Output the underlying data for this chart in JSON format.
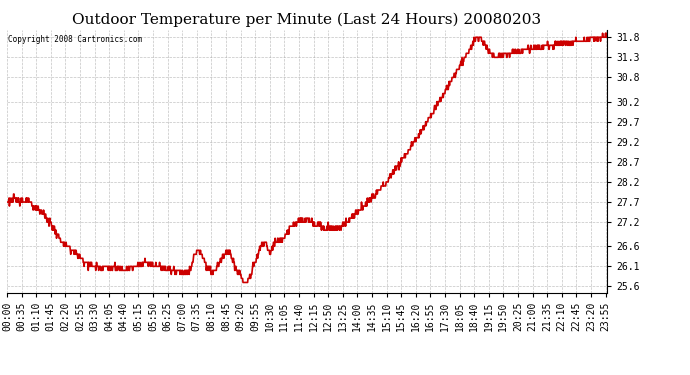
{
  "title": "Outdoor Temperature per Minute (Last 24 Hours) 20080203",
  "copyright_text": "Copyright 2008 Cartronics.com",
  "line_color": "#cc0000",
  "bg_color": "#ffffff",
  "plot_bg_color": "#ffffff",
  "grid_color": "#aaaaaa",
  "yticks": [
    25.6,
    26.1,
    26.6,
    27.2,
    27.7,
    28.2,
    28.7,
    29.2,
    29.7,
    30.2,
    30.8,
    31.3,
    31.8
  ],
  "ylim": [
    25.45,
    31.98
  ],
  "xtick_labels": [
    "00:00",
    "00:35",
    "01:10",
    "01:45",
    "02:20",
    "02:55",
    "03:30",
    "04:05",
    "04:40",
    "05:15",
    "05:50",
    "06:25",
    "07:00",
    "07:35",
    "08:10",
    "08:45",
    "09:20",
    "09:55",
    "10:30",
    "11:05",
    "11:40",
    "12:15",
    "12:50",
    "13:25",
    "14:00",
    "14:35",
    "15:10",
    "15:45",
    "16:20",
    "16:55",
    "17:30",
    "18:05",
    "18:40",
    "19:15",
    "19:50",
    "20:25",
    "21:00",
    "21:35",
    "22:10",
    "22:45",
    "23:20",
    "23:55"
  ],
  "line_width": 1.2,
  "title_fontsize": 11,
  "tick_fontsize": 7,
  "fig_width": 6.9,
  "fig_height": 3.75,
  "dpi": 100
}
